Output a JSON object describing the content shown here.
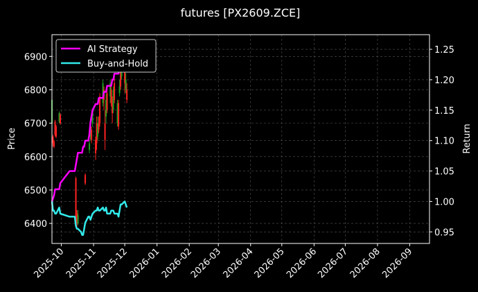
{
  "chart_data": {
    "type": "line",
    "title": "futures [PX2609.ZCE]",
    "ylabel": "Price",
    "y2label": "Return",
    "x_ticks": [
      "2025-10",
      "2025-11",
      "2025-12",
      "2026-01",
      "2026-02",
      "2026-03",
      "2026-04",
      "2026-05",
      "2026-06",
      "2026-07",
      "2026-08",
      "2026-09"
    ],
    "xlim": [
      "2025-09-22",
      "2026-09-20"
    ],
    "ylim": [
      6340,
      6965
    ],
    "y_ticks": [
      6400,
      6500,
      6600,
      6700,
      6800,
      6900
    ],
    "y2lim": [
      0.931,
      1.274
    ],
    "y2_ticks": [
      0.95,
      1.0,
      1.05,
      1.1,
      1.15,
      1.2,
      1.25
    ],
    "grid": true,
    "legend_position": "top-left",
    "colors": {
      "background": "#000000",
      "ai_strategy": "#ff00ff",
      "buy_and_hold": "#33eaea",
      "candle_up": "#1f9e1f",
      "candle_down": "#ff2222",
      "grid": "#555555"
    },
    "series": [
      {
        "name": "AI Strategy",
        "axis": "right",
        "x": [
          "2025-09-22",
          "2025-09-24",
          "2025-09-25",
          "2025-09-26",
          "2025-09-29",
          "2025-09-30",
          "2025-10-09",
          "2025-10-10",
          "2025-10-13",
          "2025-10-14",
          "2025-10-15",
          "2025-10-16",
          "2025-10-17",
          "2025-10-20",
          "2025-10-21",
          "2025-10-22",
          "2025-10-23",
          "2025-10-24",
          "2025-10-27",
          "2025-10-28",
          "2025-10-29",
          "2025-10-30",
          "2025-10-31",
          "2025-11-03",
          "2025-11-04",
          "2025-11-05",
          "2025-11-06",
          "2025-11-07",
          "2025-11-10",
          "2025-11-11",
          "2025-11-12",
          "2025-11-13",
          "2025-11-14",
          "2025-11-17",
          "2025-11-18",
          "2025-11-19",
          "2025-11-20",
          "2025-11-21",
          "2025-11-24",
          "2025-11-25",
          "2025-11-26",
          "2025-11-27",
          "2025-11-28",
          "2025-12-01"
        ],
        "y": [
          1.0,
          1.01,
          1.02,
          1.02,
          1.02,
          1.03,
          1.05,
          1.05,
          1.05,
          1.05,
          1.06,
          1.07,
          1.08,
          1.08,
          1.08,
          1.09,
          1.09,
          1.1,
          1.1,
          1.11,
          1.13,
          1.14,
          1.15,
          1.16,
          1.16,
          1.16,
          1.17,
          1.17,
          1.17,
          1.18,
          1.18,
          1.18,
          1.19,
          1.19,
          1.19,
          1.2,
          1.2,
          1.21,
          1.21,
          1.21,
          1.22,
          1.22,
          1.22,
          1.22
        ]
      },
      {
        "name": "Buy-and-Hold",
        "axis": "right",
        "x": [
          "2025-09-22",
          "2025-09-23",
          "2025-09-24",
          "2025-09-25",
          "2025-09-26",
          "2025-09-29",
          "2025-09-30",
          "2025-10-09",
          "2025-10-10",
          "2025-10-13",
          "2025-10-14",
          "2025-10-15",
          "2025-10-16",
          "2025-10-17",
          "2025-10-20",
          "2025-10-21",
          "2025-10-22",
          "2025-10-23",
          "2025-10-24",
          "2025-10-27",
          "2025-10-28",
          "2025-10-29",
          "2025-10-30",
          "2025-10-31",
          "2025-11-03",
          "2025-11-04",
          "2025-11-05",
          "2025-11-06",
          "2025-11-07",
          "2025-11-10",
          "2025-11-11",
          "2025-11-12",
          "2025-11-13",
          "2025-11-14",
          "2025-11-17",
          "2025-11-18",
          "2025-11-19",
          "2025-11-20",
          "2025-11-21",
          "2025-11-24",
          "2025-11-25",
          "2025-11-26",
          "2025-11-27",
          "2025-11-28",
          "2025-12-01",
          "2025-12-02",
          "2025-12-03"
        ],
        "y": [
          1.0,
          0.985,
          0.985,
          0.98,
          0.98,
          0.99,
          0.98,
          0.975,
          0.975,
          0.975,
          0.975,
          0.96,
          0.955,
          0.955,
          0.95,
          0.945,
          0.945,
          0.955,
          0.965,
          0.975,
          0.975,
          0.97,
          0.975,
          0.98,
          0.985,
          0.985,
          0.99,
          0.985,
          0.985,
          0.99,
          0.985,
          0.985,
          0.99,
          0.98,
          0.98,
          0.985,
          0.985,
          0.985,
          0.98,
          0.98,
          0.975,
          0.985,
          0.995,
          0.995,
          1.0,
          0.995,
          0.99
        ]
      }
    ],
    "candles": [
      {
        "date": "2025-09-22",
        "open": 6700,
        "close": 6770,
        "high": 6770,
        "low": 6690
      },
      {
        "date": "2025-09-23",
        "open": 6660,
        "close": 6640,
        "high": 6665,
        "low": 6630
      },
      {
        "date": "2025-09-24",
        "open": 6645,
        "close": 6630,
        "high": 6650,
        "low": 6625
      },
      {
        "date": "2025-09-25",
        "open": 6705,
        "close": 6665,
        "high": 6710,
        "low": 6660
      },
      {
        "date": "2025-09-26",
        "open": 6690,
        "close": 6660,
        "high": 6695,
        "low": 6655
      },
      {
        "date": "2025-09-29",
        "open": 6705,
        "close": 6730,
        "high": 6735,
        "low": 6700
      },
      {
        "date": "2025-09-30",
        "open": 6725,
        "close": 6700,
        "high": 6730,
        "low": 6695
      },
      {
        "date": "2025-10-15",
        "open": 6535,
        "close": 6410,
        "high": 6540,
        "low": 6400
      },
      {
        "date": "2025-10-16",
        "open": 6430,
        "close": 6400,
        "high": 6440,
        "low": 6390
      },
      {
        "date": "2025-10-17",
        "open": 6400,
        "close": 6425,
        "high": 6440,
        "low": 6395
      },
      {
        "date": "2025-10-24",
        "open": 6545,
        "close": 6520,
        "high": 6550,
        "low": 6515
      },
      {
        "date": "2025-10-28",
        "open": 6620,
        "close": 6640,
        "high": 6650,
        "low": 6610
      },
      {
        "date": "2025-10-29",
        "open": 6660,
        "close": 6700,
        "high": 6710,
        "low": 6650
      },
      {
        "date": "2025-10-30",
        "open": 6680,
        "close": 6650,
        "high": 6690,
        "low": 6640
      },
      {
        "date": "2025-10-31",
        "open": 6700,
        "close": 6740,
        "high": 6745,
        "low": 6690
      },
      {
        "date": "2025-11-03",
        "open": 6650,
        "close": 6610,
        "high": 6660,
        "low": 6590
      },
      {
        "date": "2025-11-04",
        "open": 6700,
        "close": 6640,
        "high": 6720,
        "low": 6620
      },
      {
        "date": "2025-11-05",
        "open": 6660,
        "close": 6700,
        "high": 6720,
        "low": 6650
      },
      {
        "date": "2025-11-06",
        "open": 6700,
        "close": 6680,
        "high": 6720,
        "low": 6670
      },
      {
        "date": "2025-11-07",
        "open": 6780,
        "close": 6700,
        "high": 6790,
        "low": 6690
      },
      {
        "date": "2025-11-10",
        "open": 6760,
        "close": 6820,
        "high": 6830,
        "low": 6750
      },
      {
        "date": "2025-11-11",
        "open": 6800,
        "close": 6770,
        "high": 6810,
        "low": 6740
      },
      {
        "date": "2025-11-12",
        "open": 6700,
        "close": 6650,
        "high": 6740,
        "low": 6620
      },
      {
        "date": "2025-11-13",
        "open": 6720,
        "close": 6770,
        "high": 6790,
        "low": 6700
      },
      {
        "date": "2025-11-14",
        "open": 6790,
        "close": 6740,
        "high": 6810,
        "low": 6730
      },
      {
        "date": "2025-11-17",
        "open": 6780,
        "close": 6820,
        "high": 6830,
        "low": 6760
      },
      {
        "date": "2025-11-18",
        "open": 6800,
        "close": 6760,
        "high": 6810,
        "low": 6750
      },
      {
        "date": "2025-11-19",
        "open": 6760,
        "close": 6730,
        "high": 6780,
        "low": 6700
      },
      {
        "date": "2025-11-20",
        "open": 6740,
        "close": 6800,
        "high": 6810,
        "low": 6730
      },
      {
        "date": "2025-11-21",
        "open": 6820,
        "close": 6770,
        "high": 6840,
        "low": 6760
      },
      {
        "date": "2025-11-24",
        "open": 6700,
        "close": 6760,
        "high": 6770,
        "low": 6690
      },
      {
        "date": "2025-11-25",
        "open": 6760,
        "close": 6690,
        "high": 6770,
        "low": 6680
      },
      {
        "date": "2025-11-26",
        "open": 6790,
        "close": 6810,
        "high": 6830,
        "low": 6780
      },
      {
        "date": "2025-11-27",
        "open": 6860,
        "close": 6810,
        "high": 6870,
        "low": 6800
      },
      {
        "date": "2025-11-28",
        "open": 6840,
        "close": 6860,
        "high": 6900,
        "low": 6830
      },
      {
        "date": "2025-12-01",
        "open": 6870,
        "close": 6820,
        "high": 6880,
        "low": 6790
      },
      {
        "date": "2025-12-02",
        "open": 6800,
        "close": 6830,
        "high": 6850,
        "low": 6790
      },
      {
        "date": "2025-12-03",
        "open": 6800,
        "close": 6770,
        "high": 6820,
        "low": 6760
      }
    ]
  }
}
